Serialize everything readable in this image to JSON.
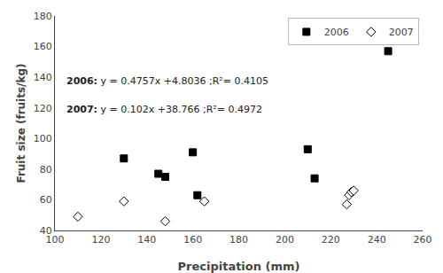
{
  "chart_data": {
    "type": "scatter",
    "x_label": "Precipitation (mm)",
    "y_label": "Fruit size (fruits/kg)",
    "series": [
      {
        "name": "2006",
        "color": "black",
        "marker": "square",
        "x": [
          130,
          145,
          148,
          160,
          162,
          210,
          213,
          245
        ],
        "values": [
          87,
          77,
          75,
          91,
          63,
          93,
          74,
          157
        ]
      },
      {
        "name": "2007",
        "color": "white",
        "marker": "diamond",
        "x": [
          110,
          130,
          148,
          165,
          227,
          228,
          229,
          230
        ],
        "values": [
          49,
          59,
          46,
          59,
          57,
          63,
          65,
          66
        ]
      }
    ],
    "xlim": [
      100,
      260
    ],
    "ylim": [
      40,
      180
    ],
    "xticks": [
      100,
      120,
      140,
      160,
      180,
      200,
      220,
      240,
      260
    ],
    "yticks": [
      40,
      60,
      80,
      100,
      120,
      140,
      160,
      180
    ],
    "annotations": [
      "2006: y = 0.4757x +4.8036 ;R²= 0.4105",
      "2007: y = 0.102x +38.766 ;R²= 0.4972"
    ],
    "legend": "upper right",
    "grid": false
  }
}
